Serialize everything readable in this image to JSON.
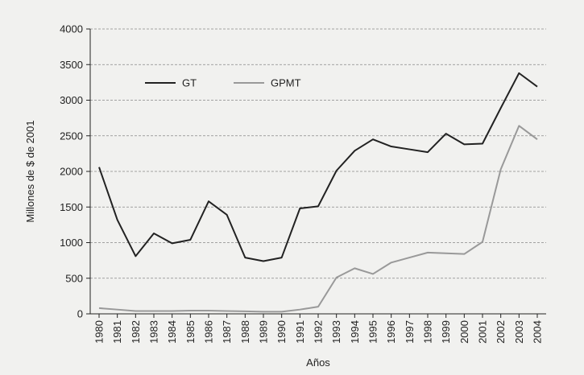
{
  "chart_data": {
    "type": "line",
    "x_label": "Años",
    "y_label": "Millones de $ de 2001",
    "categories": [
      "1980",
      "1981",
      "1982",
      "1983",
      "1984",
      "1985",
      "1986",
      "1987",
      "1988",
      "1989",
      "1990",
      "1991",
      "1992",
      "1993",
      "1994",
      "1995",
      "1996",
      "1997",
      "1998",
      "1999",
      "2000",
      "2001",
      "2002",
      "2003",
      "2004"
    ],
    "series": [
      {
        "name": "GT",
        "color": "#222222",
        "values": [
          2060,
          1320,
          810,
          1130,
          990,
          1040,
          1580,
          1390,
          790,
          740,
          790,
          1480,
          1510,
          2010,
          2290,
          2450,
          2350,
          2310,
          2270,
          2530,
          2380,
          2390,
          2890,
          3380,
          3190
        ]
      },
      {
        "name": "GPMT",
        "color": "#999999",
        "values": [
          80,
          60,
          40,
          40,
          40,
          45,
          45,
          40,
          35,
          30,
          30,
          60,
          100,
          510,
          640,
          560,
          720,
          790,
          860,
          850,
          840,
          1010,
          2030,
          2640,
          2450
        ]
      }
    ],
    "ylim": [
      0,
      4000
    ],
    "yticks": [
      0,
      500,
      1000,
      1500,
      2000,
      2500,
      3000,
      3500,
      4000
    ],
    "grid": true,
    "legend": "top-left"
  }
}
